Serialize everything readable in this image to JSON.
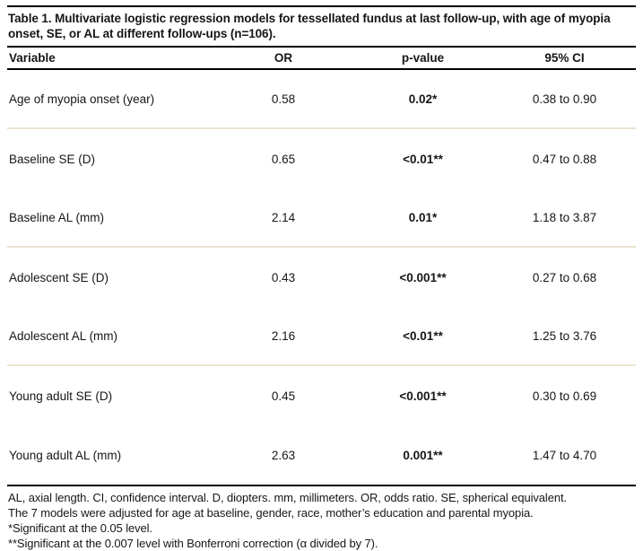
{
  "table": {
    "title": "Table 1. Multivariate logistic regression models for tessellated fundus at last follow-up, with age of myopia onset, SE, or AL at different follow-ups (n=106).",
    "columns": {
      "variable": "Variable",
      "or": "OR",
      "p_value": "p-value",
      "ci": "95% CI"
    },
    "rows": [
      {
        "variable": "Age of myopia onset (year)",
        "or": "0.58",
        "p": "0.02*",
        "ci": "0.38 to 0.90"
      },
      {
        "variable": "Baseline SE (D)",
        "or": "0.65",
        "p": "<0.01**",
        "ci": "0.47 to 0.88"
      },
      {
        "variable": "Baseline AL (mm)",
        "or": "2.14",
        "p": "0.01*",
        "ci": "1.18 to 3.87"
      },
      {
        "variable": "Adolescent SE (D)",
        "or": "0.43",
        "p": "<0.001**",
        "ci": "0.27 to 0.68"
      },
      {
        "variable": "Adolescent AL (mm)",
        "or": "2.16",
        "p": "<0.01**",
        "ci": "1.25 to 3.76"
      },
      {
        "variable": "Young adult SE (D)",
        "or": "0.45",
        "p": "<0.001**",
        "ci": "0.30 to 0.69"
      },
      {
        "variable": "Young adult AL (mm)",
        "or": "2.63",
        "p": "0.001**",
        "ci": "1.47 to 4.70"
      }
    ],
    "footnotes": [
      "AL, axial length. CI, confidence interval. D, diopters. mm, millimeters. OR, odds ratio. SE, spherical equivalent.",
      "The 7 models were adjusted for age at baseline, gender, race, mother’s education and parental myopia.",
      "*Significant at the 0.05 level.",
      "**Significant at the 0.007 level with Bonferroni correction (α divided by 7)."
    ]
  },
  "colors": {
    "rule": "#000000",
    "group_separator": "#eae3d1",
    "text": "#161616",
    "background": "#ffffff"
  }
}
